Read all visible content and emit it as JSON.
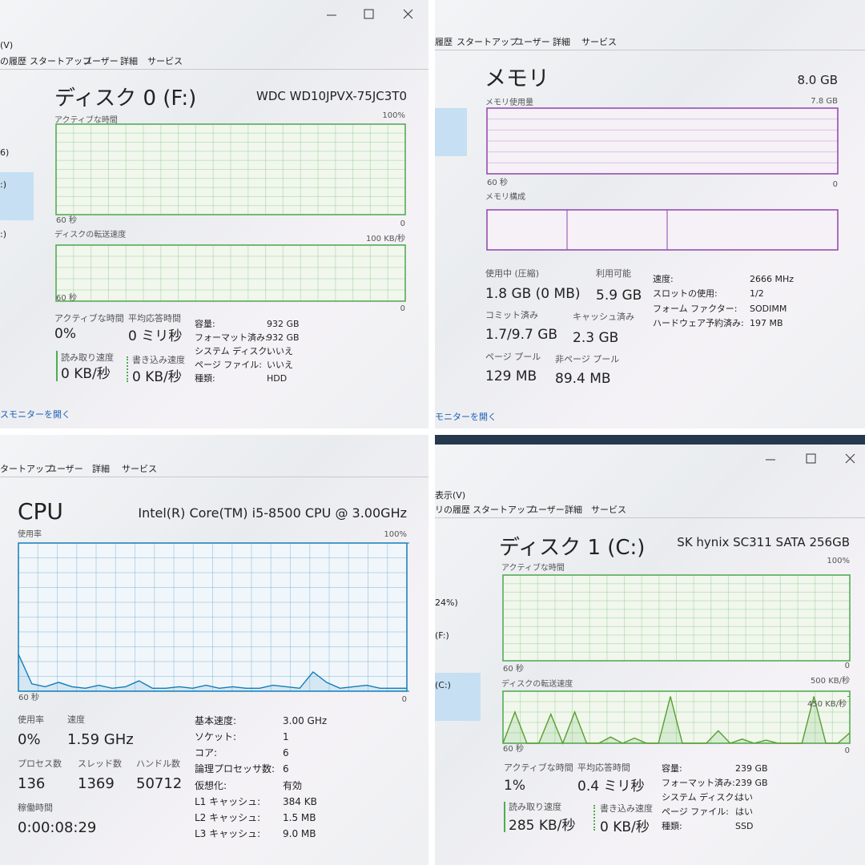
{
  "disk0": {
    "menu": "(V)",
    "tabs": [
      "の履歴",
      "スタートアップ",
      "ユーザー",
      "詳細",
      "サービス"
    ],
    "sidebar": [
      "6)",
      ":)",
      ":)"
    ],
    "title": "ディスク 0 (F:)",
    "model": "WDC WD10JPVX-75JC3T0",
    "active": {
      "label": "アクティブな時間",
      "max": "100%",
      "min": "0",
      "time": "60 秒"
    },
    "transfer": {
      "label": "ディスクの転送速度",
      "max": "100 KB/秒",
      "min": "0",
      "time": "60 秒"
    },
    "stats": [
      {
        "label": "アクティブな時間",
        "value": "0%"
      },
      {
        "label": "平均応答時間",
        "value": "0 ミリ秒"
      },
      {
        "label": "読み取り速度",
        "value": "0 KB/秒"
      },
      {
        "label": "書き込み速度",
        "value": "0 KB/秒"
      }
    ],
    "props": [
      [
        "容量:",
        "932 GB"
      ],
      [
        "フォーマット済み:",
        "932 GB"
      ],
      [
        "システム ディスク:",
        "いいえ"
      ],
      [
        "ページ ファイル:",
        "いいえ"
      ],
      [
        "種類:",
        "HDD"
      ]
    ],
    "footer": "スモニターを開く"
  },
  "memory": {
    "tabs": [
      "履歴",
      "スタートアップ",
      "ユーザー",
      "詳細",
      "サービス"
    ],
    "title": "メモリ",
    "total": "8.0 GB",
    "usage": {
      "label": "メモリ使用量",
      "max": "7.8 GB",
      "time": "60 秒",
      "min": "0"
    },
    "composition": "メモリ構成",
    "stats": [
      {
        "label": "使用中 (圧縮)",
        "value": "1.8 GB (0 MB)"
      },
      {
        "label": "利用可能",
        "value": "5.9 GB"
      },
      {
        "label": "コミット済み",
        "value": "1.7/9.7 GB"
      },
      {
        "label": "キャッシュ済み",
        "value": "2.3 GB"
      },
      {
        "label": "ページ プール",
        "value": "129 MB"
      },
      {
        "label": "非ページ プール",
        "value": "89.4 MB"
      }
    ],
    "props": [
      [
        "速度:",
        "2666 MHz"
      ],
      [
        "スロットの使用:",
        "1/2"
      ],
      [
        "フォーム ファクター:",
        "SODIMM"
      ],
      [
        "ハードウェア予約済み:",
        "197 MB"
      ]
    ],
    "footer": "モニターを開く"
  },
  "cpu": {
    "tabs": [
      "タートアップ",
      "ユーザー",
      "詳細",
      "サービス"
    ],
    "title": "CPU",
    "model": "Intel(R) Core(TM) i5-8500 CPU @ 3.00GHz",
    "graph": {
      "label": "使用率",
      "time": "60 秒",
      "ylim": [
        0,
        100
      ],
      "yticks": [
        0,
        {
          "value": 100,
          "label": "100%"
        }
      ],
      "values": [
        25,
        5,
        3,
        6,
        3,
        2,
        4,
        2,
        3,
        7,
        2,
        2,
        3,
        2,
        4,
        2,
        3,
        2,
        2,
        4,
        3,
        2,
        13,
        6,
        2,
        3,
        4,
        2,
        2,
        2
      ]
    },
    "stats": [
      {
        "label": "使用率",
        "value": "0%"
      },
      {
        "label": "速度",
        "value": "1.59 GHz"
      },
      {
        "label": "プロセス数",
        "value": "136"
      },
      {
        "label": "スレッド数",
        "value": "1369"
      },
      {
        "label": "ハンドル数",
        "value": "50712"
      },
      {
        "label": "稼働時間",
        "value": "0:00:08:29"
      }
    ],
    "props": [
      [
        "基本速度:",
        "3.00 GHz"
      ],
      [
        "ソケット:",
        "1"
      ],
      [
        "コア:",
        "6"
      ],
      [
        "論理プロセッサ数:",
        "6"
      ],
      [
        "仮想化:",
        "有効"
      ],
      [
        "L1 キャッシュ:",
        "384 KB"
      ],
      [
        "L2 キャッシュ:",
        "1.5 MB"
      ],
      [
        "L3 キャッシュ:",
        "9.0 MB"
      ]
    ]
  },
  "disk1": {
    "menu": "表示(V)",
    "tabs": [
      "リの履歴",
      "スタートアップ",
      "ユーザー",
      "詳細",
      "サービス"
    ],
    "sidebar": [
      "24%)",
      "(F:)",
      "(C:)"
    ],
    "title": "ディスク 1 (C:)",
    "model": "SK hynix SC311 SATA 256GB",
    "active": {
      "label": "アクティブな時間",
      "max": "100%",
      "min": "0",
      "time": "60 秒"
    },
    "transfer": {
      "label": "ディスクの転送速度",
      "time": "60 秒",
      "ylim": [
        0,
        500
      ],
      "yticks": [
        0,
        {
          "value": 450,
          "label": "450 KB/秒"
        },
        {
          "value": 500,
          "label": "500 KB/秒"
        }
      ],
      "values": [
        0,
        300,
        0,
        0,
        280,
        0,
        300,
        0,
        0,
        60,
        0,
        50,
        0,
        0,
        450,
        0,
        0,
        0,
        120,
        0,
        40,
        0,
        30,
        0,
        0,
        0,
        450,
        0,
        0,
        100
      ]
    },
    "stats": [
      {
        "label": "アクティブな時間",
        "value": "1%"
      },
      {
        "label": "平均応答時間",
        "value": "0.4 ミリ秒"
      },
      {
        "label": "読み取り速度",
        "value": "285 KB/秒"
      },
      {
        "label": "書き込み速度",
        "value": "0 KB/秒"
      }
    ],
    "props": [
      [
        "容量:",
        "239 GB"
      ],
      [
        "フォーマット済み:",
        "239 GB"
      ],
      [
        "システム ディスク:",
        "はい"
      ],
      [
        "ページ ファイル:",
        "はい"
      ],
      [
        "種類:",
        "SSD"
      ]
    ]
  }
}
